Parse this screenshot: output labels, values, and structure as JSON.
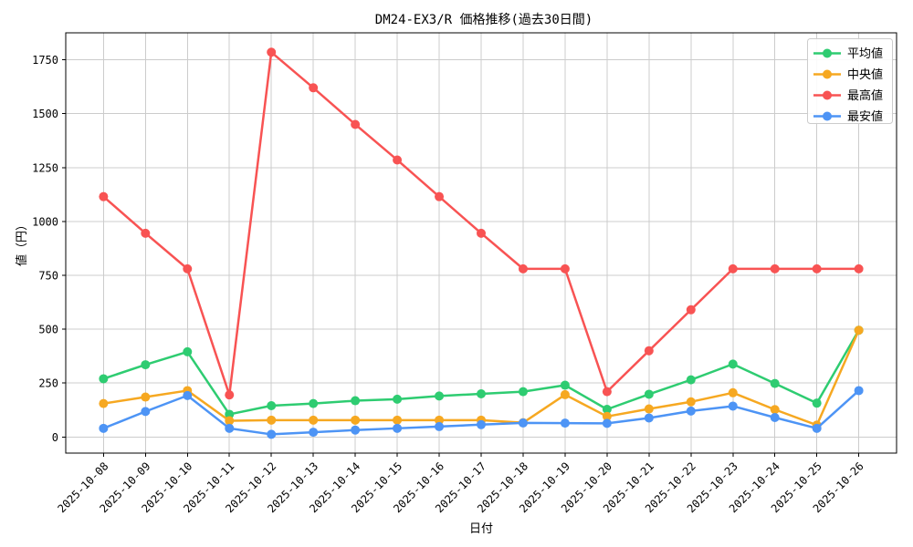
{
  "chart_data": {
    "type": "line",
    "title": "DM24-EX3/R 価格推移(過去30日間)",
    "xlabel": "日付",
    "ylabel": "値（円）",
    "x": [
      "2025-10-08",
      "2025-10-09",
      "2025-10-10",
      "2025-10-11",
      "2025-10-12",
      "2025-10-13",
      "2025-10-14",
      "2025-10-15",
      "2025-10-16",
      "2025-10-17",
      "2025-10-18",
      "2025-10-19",
      "2025-10-20",
      "2025-10-21",
      "2025-10-22",
      "2025-10-23",
      "2025-10-24",
      "2025-10-25",
      "2025-10-26"
    ],
    "series": [
      {
        "name": "平均値",
        "color": "#2ecc71",
        "values": [
          270,
          335,
          395,
          105,
          145,
          155,
          168,
          175,
          190,
          200,
          210,
          240,
          128,
          198,
          265,
          338,
          248,
          157,
          495
        ]
      },
      {
        "name": "中央値",
        "color": "#f6a821",
        "values": [
          155,
          185,
          215,
          75,
          78,
          78,
          78,
          78,
          78,
          78,
          66,
          196,
          95,
          130,
          163,
          205,
          127,
          55,
          495
        ]
      },
      {
        "name": "最高値",
        "color": "#f85353",
        "values": [
          1115,
          945,
          780,
          195,
          1785,
          1620,
          1450,
          1285,
          1115,
          945,
          780,
          780,
          210,
          400,
          590,
          780,
          780,
          780,
          780
        ]
      },
      {
        "name": "最安値",
        "color": "#4d94f5",
        "values": [
          40,
          118,
          192,
          40,
          12,
          22,
          32,
          40,
          48,
          57,
          65,
          64,
          63,
          88,
          120,
          143,
          90,
          40,
          215
        ]
      }
    ],
    "ylim": [
      -75,
      1875
    ],
    "yticks": [
      0,
      250,
      500,
      750,
      1000,
      1250,
      1500,
      1750
    ],
    "grid": true,
    "grid_color": "#cccccc",
    "legend_position": "upper right",
    "background": "#ffffff",
    "marker": "circle"
  }
}
